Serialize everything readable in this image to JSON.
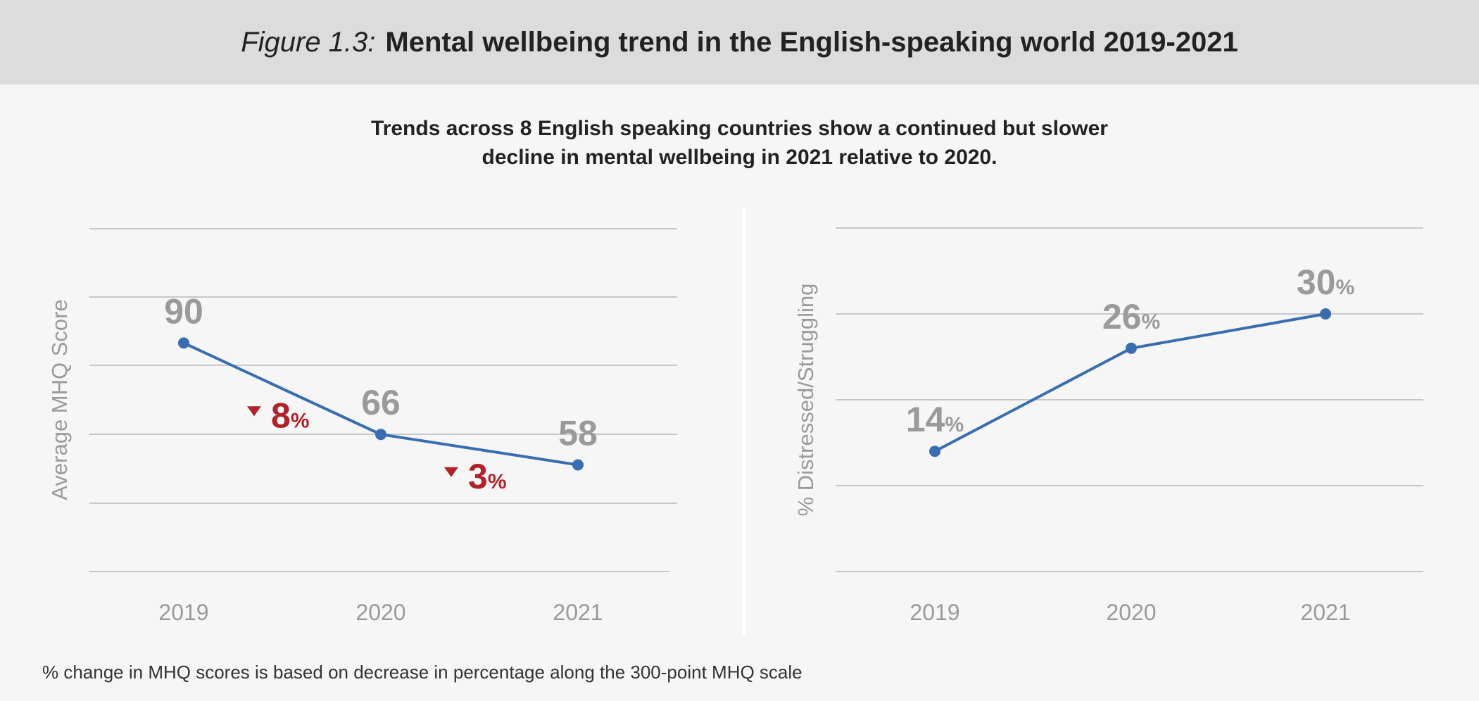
{
  "header": {
    "figure_label": "Figure 1.3:",
    "title": "Mental wellbeing trend in the English-speaking world 2019-2021"
  },
  "subtitle": {
    "line1": "Trends across 8 English speaking countries show a continued but slower",
    "line2": "decline in mental wellbeing in 2021 relative to 2020."
  },
  "footnote": "% change in MHQ scores is based on decrease in percentage along the 300-point MHQ scale",
  "colors": {
    "line": "#3a6db0",
    "grid": "#b8b8b8",
    "label": "#9a9a9a",
    "decline": "#b0232a",
    "divider": "#ffffff"
  },
  "chart_data": [
    {
      "type": "line",
      "ylabel": "Average MHQ Score",
      "xlabel": "",
      "categories": [
        "2019",
        "2020",
        "2021"
      ],
      "values": [
        90,
        66,
        58
      ],
      "value_labels": [
        "90",
        "66",
        "58"
      ],
      "ylim": [
        30,
        120
      ],
      "grid": true,
      "annotations": [
        {
          "between": [
            "2019",
            "2020"
          ],
          "direction": "down",
          "value": "8",
          "unit": "%"
        },
        {
          "between": [
            "2020",
            "2021"
          ],
          "direction": "down",
          "value": "3",
          "unit": "%"
        }
      ]
    },
    {
      "type": "line",
      "ylabel": "% Distressed/Struggling",
      "xlabel": "",
      "categories": [
        "2019",
        "2020",
        "2021"
      ],
      "values": [
        14,
        26,
        30
      ],
      "value_labels": [
        {
          "number": "14",
          "unit": "%"
        },
        {
          "number": "26",
          "unit": "%"
        },
        {
          "number": "30",
          "unit": "%"
        }
      ],
      "ylim": [
        0,
        40
      ],
      "grid": true
    }
  ]
}
